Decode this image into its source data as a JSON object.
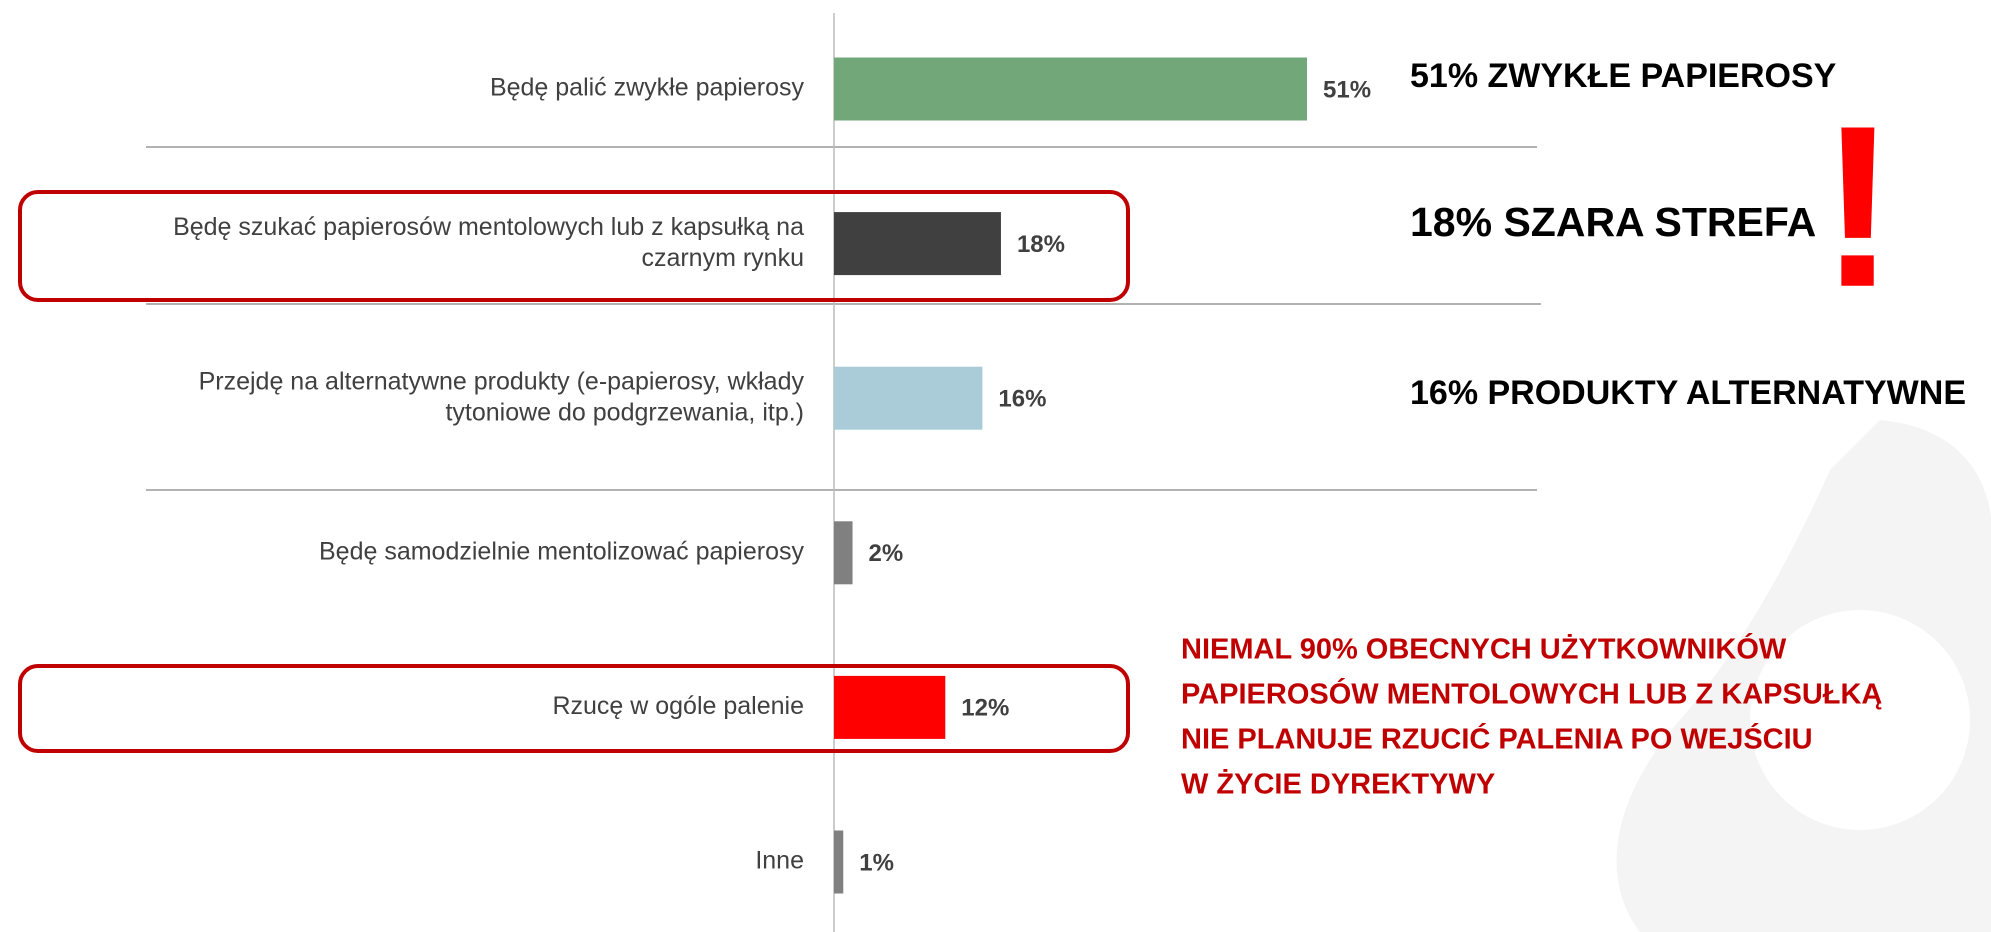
{
  "chart_data": {
    "type": "hbar",
    "categories": [
      "Będę palić zwykłe papierosy",
      "Będę szukać papierosów mentolowych lub z kapsułką na\nczarnym rynku",
      "Przejdę na alternatywne produkty (e-papierosy, wkłady\ntytoniowe do podgrzewania, itp.)",
      "Będę samodzielnie mentolizować papierosy",
      "Rzucę w ogóle palenie",
      "Inne"
    ],
    "values": [
      51,
      18,
      16,
      2,
      12,
      1
    ],
    "value_labels": [
      "51%",
      "18%",
      "16%",
      "2%",
      "12%",
      "1%"
    ],
    "colors": [
      "#72a77a",
      "#404040",
      "#a9ccd8",
      "#808080",
      "#ff0000",
      "#808080"
    ],
    "annotations": [
      "51% ZWYKŁE PAPIEROSY",
      "18% SZARA STREFA",
      "16% PRODUKTY ALTERNATYWNE",
      "!",
      "NIEMAL 90% OBECNYCH UŻYTKOWNIKÓW\nPAPIEROSÓW MENTOLOWYCH LUB Z KAPSUŁKĄ\nNIE PLANUJE RZUCIĆ PALENIA PO WEJŚCIU\nW ŻYCIE DYREKTYWY"
    ]
  }
}
